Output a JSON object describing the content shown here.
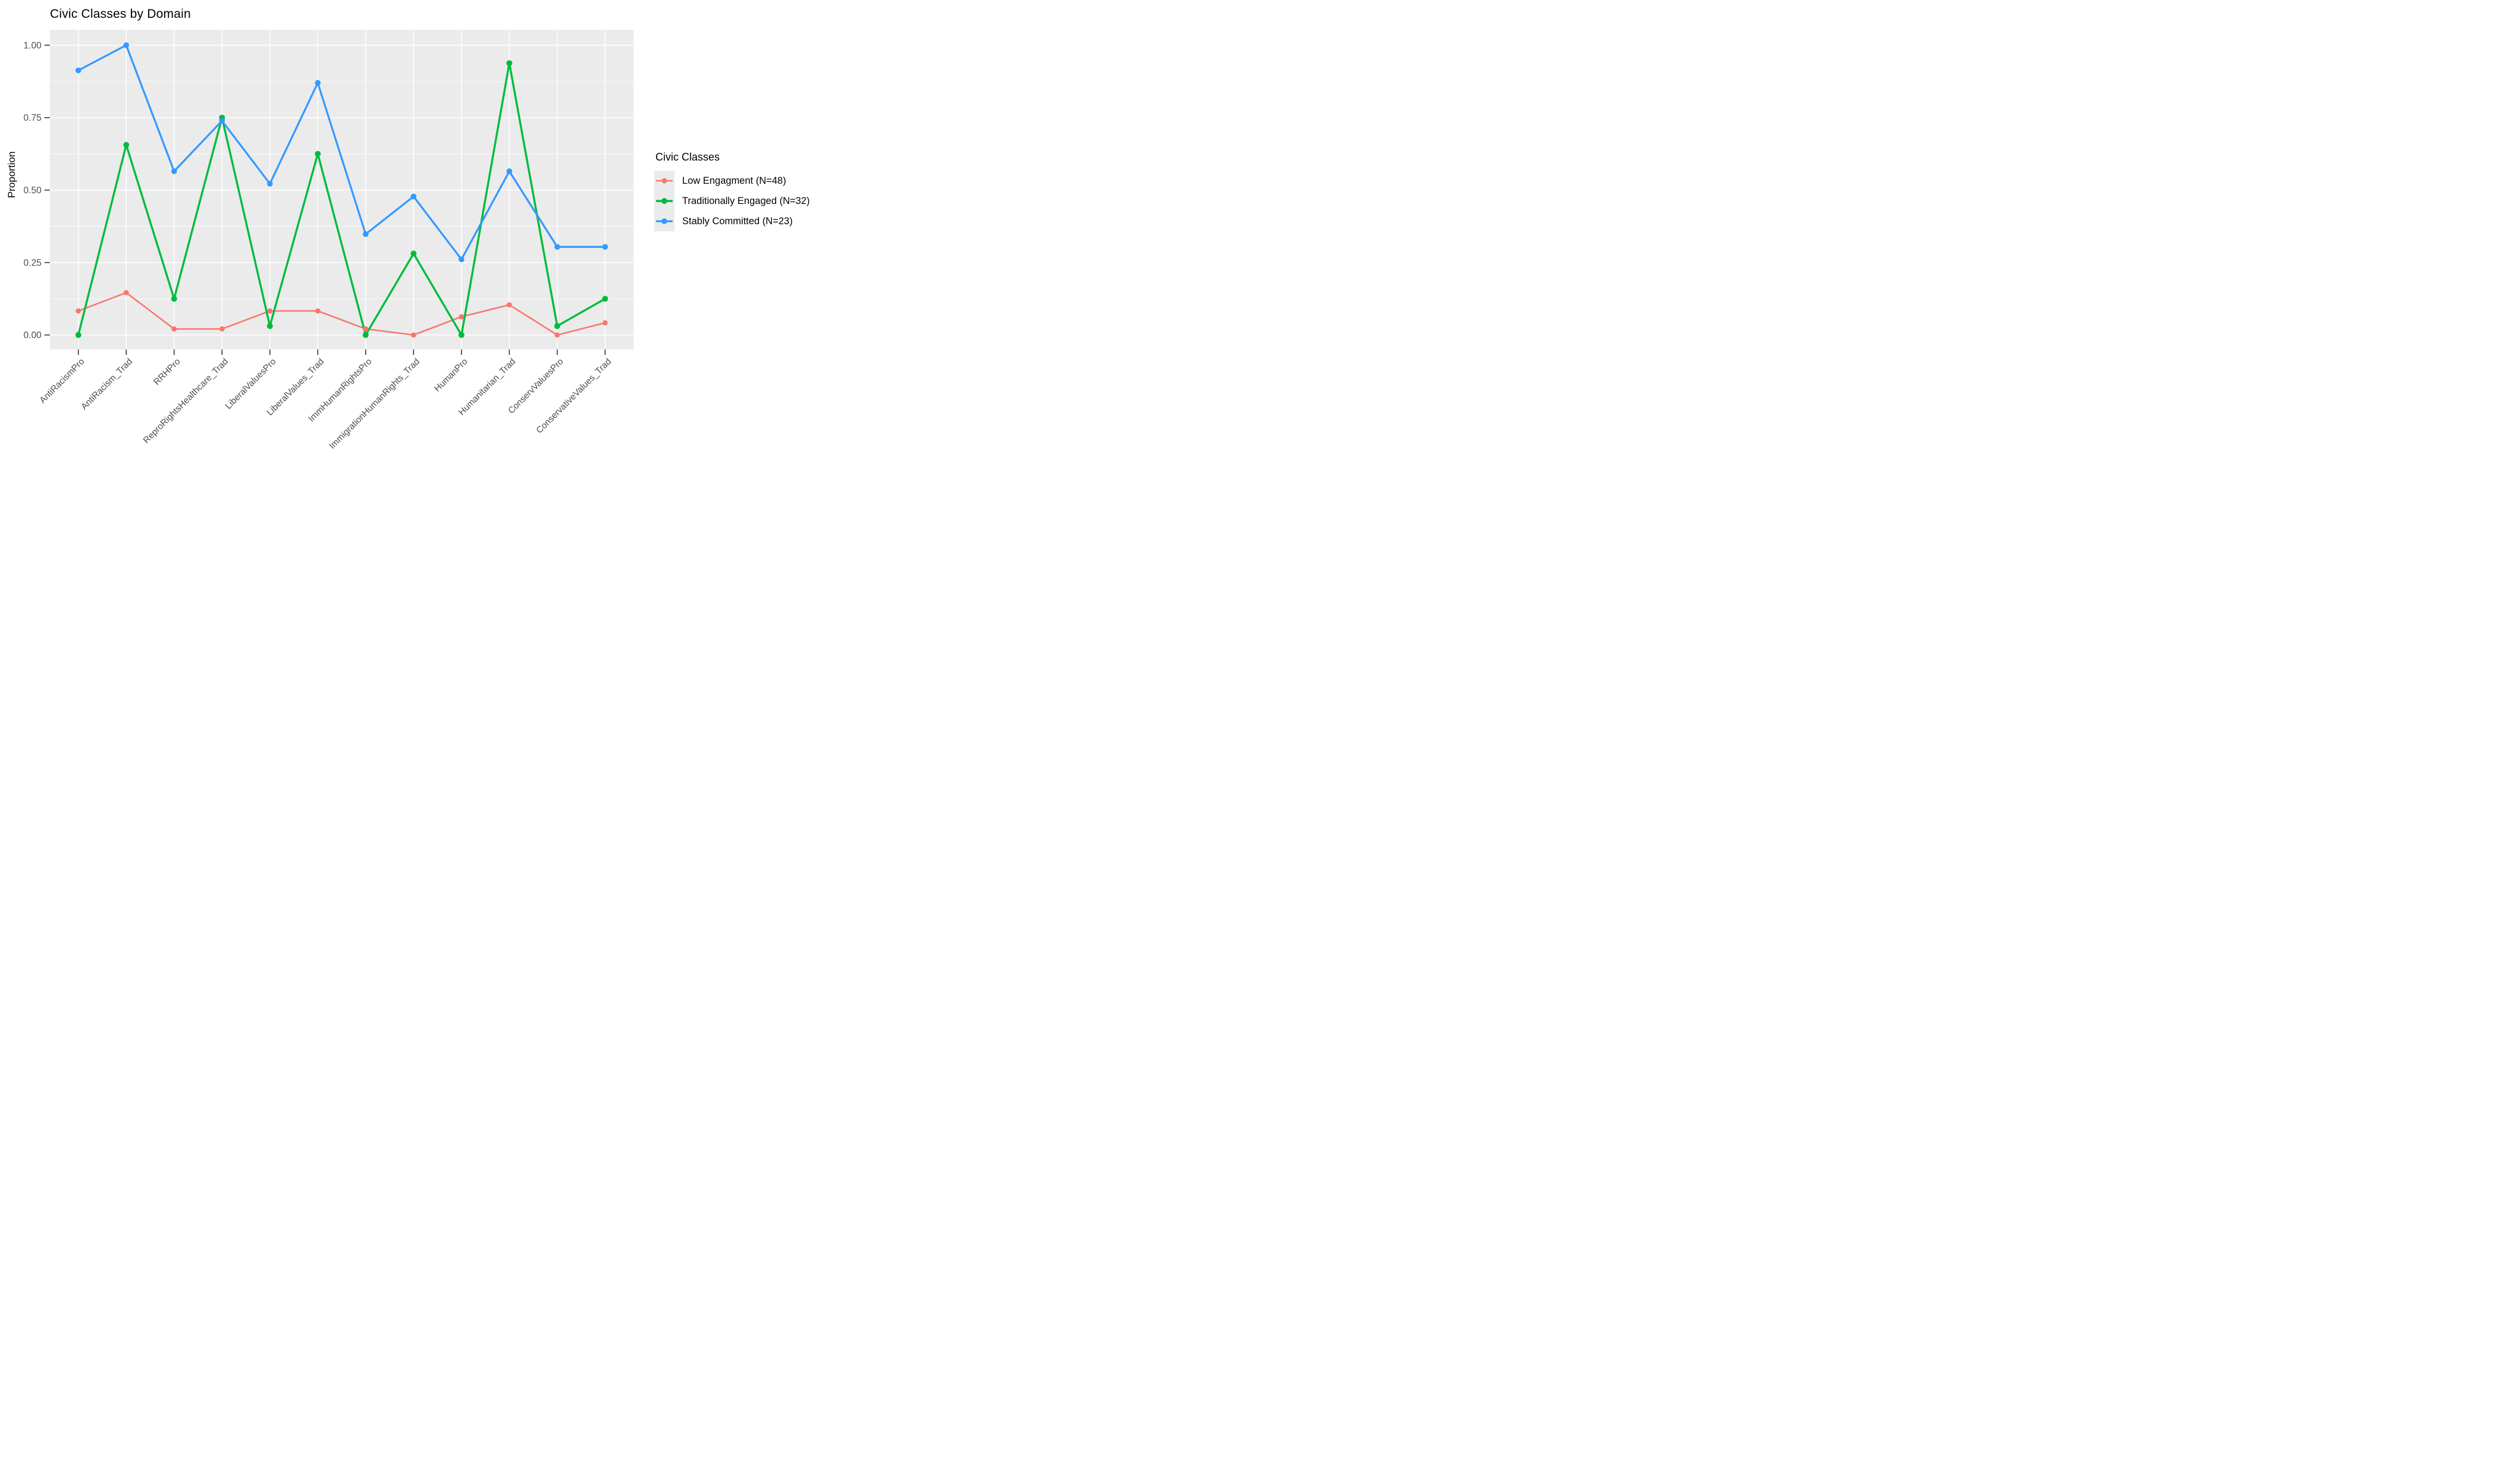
{
  "title": "Civic Classes by Domain",
  "y_axis": {
    "label": "Proportion",
    "tick_labels": [
      "0.00",
      "0.25",
      "0.50",
      "0.75",
      "1.00"
    ],
    "tick_values": [
      0.0,
      0.25,
      0.5,
      0.75,
      1.0
    ]
  },
  "x_axis": {
    "categories": [
      "AntiRacismPro",
      "AntiRacism_Trad",
      "RRHPro",
      "ReproRightsHealthcare_Trad",
      "LiberalValuesPro",
      "LiberalValues_Trad",
      "ImmHumanRightsPro",
      "ImmigrationHumanRights_Trad",
      "HumanPro",
      "Humanitarian_Trad",
      "ConservValuesPro",
      "ConservativeValues_Trad"
    ]
  },
  "legend": {
    "title": "Civic Classes",
    "items": [
      "Low Engagment (N=48)",
      "Traditionally Engaged (N=32)",
      "Stably Committed (N=23)"
    ]
  },
  "colors": {
    "panel_background": "#EBEBEB",
    "gridline": "#FFFFFF",
    "axis_text": "#4D4D4D",
    "tick_mark": "#333333",
    "series_red": "#F8766D",
    "series_green": "#00BC3C",
    "series_blue": "#3399FF"
  },
  "chart_data": {
    "type": "line",
    "title": "Civic Classes by Domain",
    "xlabel": "",
    "ylabel": "Proportion",
    "ylim": [
      0,
      1
    ],
    "y_major_ticks": [
      0.0,
      0.25,
      0.5,
      0.75,
      1.0
    ],
    "y_minor_ticks": [
      0.125,
      0.375,
      0.625,
      0.875
    ],
    "grid": true,
    "panel_background": "#EBEBEB",
    "legend_position": "right",
    "legend_title": "Civic Classes",
    "categories": [
      "AntiRacismPro",
      "AntiRacism_Trad",
      "RRHPro",
      "ReproRightsHealthcare_Trad",
      "LiberalValuesPro",
      "LiberalValues_Trad",
      "ImmHumanRightsPro",
      "ImmigrationHumanRights_Trad",
      "HumanPro",
      "Humanitarian_Trad",
      "ConservValuesPro",
      "ConservativeValues_Trad"
    ],
    "series": [
      {
        "name": "Low Engagment (N=48)",
        "color": "#F8766D",
        "values": [
          0.083,
          0.146,
          0.021,
          0.021,
          0.083,
          0.083,
          0.021,
          0.0,
          0.063,
          0.104,
          0.0,
          0.042
        ]
      },
      {
        "name": "Traditionally Engaged (N=32)",
        "color": "#00BC3C",
        "values": [
          0.0,
          0.656,
          0.125,
          0.75,
          0.031,
          0.625,
          0.0,
          0.281,
          0.0,
          0.938,
          0.031,
          0.125
        ]
      },
      {
        "name": "Stably Committed (N=23)",
        "color": "#3399FF",
        "values": [
          0.913,
          1.0,
          0.565,
          0.739,
          0.522,
          0.87,
          0.348,
          0.478,
          0.261,
          0.565,
          0.304,
          0.304
        ]
      }
    ]
  }
}
